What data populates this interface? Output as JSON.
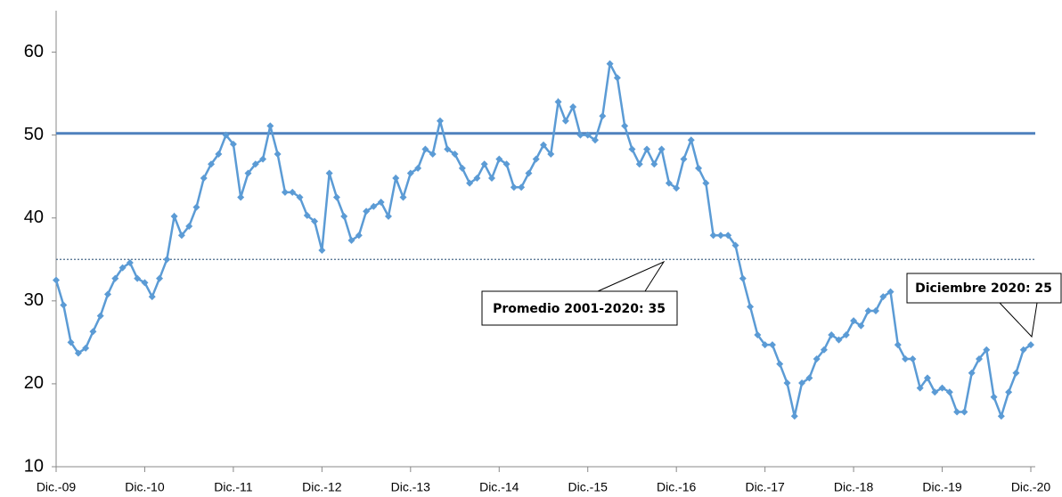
{
  "chart_data": {
    "type": "line",
    "categories": [
      "Dic.-09",
      null,
      null,
      null,
      null,
      null,
      null,
      null,
      null,
      null,
      null,
      null,
      "Dic.-10",
      null,
      null,
      null,
      null,
      null,
      null,
      null,
      null,
      null,
      null,
      null,
      "Dic.-11",
      null,
      null,
      null,
      null,
      null,
      null,
      null,
      null,
      null,
      null,
      null,
      "Dic.-12",
      null,
      null,
      null,
      null,
      null,
      null,
      null,
      null,
      null,
      null,
      null,
      "Dic.-13",
      null,
      null,
      null,
      null,
      null,
      null,
      null,
      null,
      null,
      null,
      null,
      "Dic.-14",
      null,
      null,
      null,
      null,
      null,
      null,
      null,
      null,
      null,
      null,
      null,
      "Dic.-15",
      null,
      null,
      null,
      null,
      null,
      null,
      null,
      null,
      null,
      null,
      null,
      "Dic.-16",
      null,
      null,
      null,
      null,
      null,
      null,
      null,
      null,
      null,
      null,
      null,
      "Dic.-17",
      null,
      null,
      null,
      null,
      null,
      null,
      null,
      null,
      null,
      null,
      null,
      "Dic.-18",
      null,
      null,
      null,
      null,
      null,
      null,
      null,
      null,
      null,
      null,
      null,
      "Dic.-19",
      null,
      null,
      null,
      null,
      null,
      null,
      null,
      null,
      null,
      null,
      null,
      "Dic.-20"
    ],
    "series": [
      {
        "color": "#5b9bd5",
        "values": [
          32.5,
          29.5,
          25,
          23.7,
          24.3,
          26.3,
          28.2,
          30.8,
          32.7,
          34,
          34.6,
          32.7,
          32.2,
          30.5,
          32.7,
          35,
          40.2,
          37.9,
          39,
          41.3,
          44.8,
          46.5,
          47.7,
          50,
          48.9,
          42.5,
          45.4,
          46.5,
          47.1,
          51.1,
          47.7,
          43.1,
          43.1,
          42.5,
          40.3,
          39.6,
          36.1,
          45.4,
          42.5,
          40.2,
          37.3,
          37.9,
          40.8,
          41.4,
          41.9,
          40.2,
          44.8,
          42.5,
          45.4,
          46,
          48.3,
          47.7,
          51.7,
          48.3,
          47.7,
          46,
          44.2,
          44.8,
          46.5,
          44.8,
          47.1,
          46.5,
          43.7,
          43.7,
          45.4,
          47.1,
          48.8,
          47.7,
          54,
          51.7,
          53.4,
          50,
          50,
          49.4,
          52.3,
          58.6,
          56.9,
          51.1,
          48.3,
          46.5,
          48.3,
          46.5,
          48.3,
          44.2,
          43.6,
          47.1,
          49.4,
          46,
          44.2,
          37.9,
          37.9,
          37.9,
          36.7,
          32.7,
          29.3,
          25.9,
          24.7,
          24.7,
          22.4,
          20.1,
          16.1,
          20.1,
          20.7,
          23,
          24.1,
          25.9,
          25.3,
          25.9,
          27.6,
          27,
          28.8,
          28.8,
          30.5,
          31.1,
          24.7,
          23,
          23,
          19.5,
          20.7,
          19,
          19.5,
          19,
          16.6,
          16.6,
          21.3,
          23,
          24.1,
          18.4,
          16.1,
          19,
          21.3,
          24.1,
          24.7
        ]
      }
    ],
    "ylim": [
      10,
      65
    ],
    "yticks": [
      10,
      20,
      30,
      40,
      50,
      60
    ],
    "grid": false,
    "reference_lines": [
      {
        "value": 50.2,
        "style": "solid",
        "color": "#4f81bd"
      },
      {
        "value": 35,
        "style": "dotted",
        "color": "#4a6a8a"
      }
    ],
    "annotations": [
      "Promedio 2001-2020: 35",
      "Diciembre 2020: 25"
    ]
  }
}
